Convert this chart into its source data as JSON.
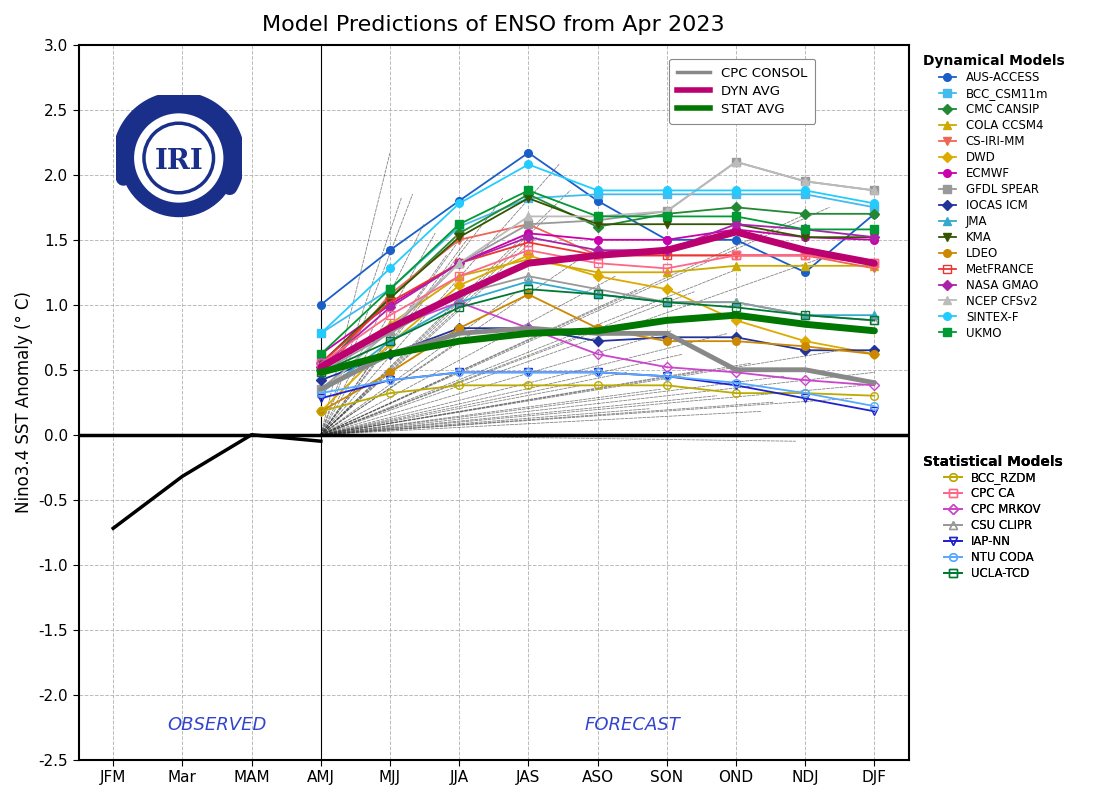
{
  "title": "Model Predictions of ENSO from Apr 2023",
  "ylabel": "Nino3.4 SST Anomaly (° C)",
  "x_labels": [
    "JFM",
    "Mar",
    "MAM",
    "AMJ",
    "MJJ",
    "JJA",
    "JAS",
    "ASO",
    "SON",
    "OND",
    "NDJ",
    "DJF"
  ],
  "ylim": [
    -2.5,
    3.0
  ],
  "observed_label": "OBSERVED",
  "forecast_label": "FORECAST",
  "background_color": "#ffffff",
  "grid_color": "#aaaaaa",
  "zero_line_color": "#000000",
  "cpc_consol": {
    "label": "CPC CONSOL",
    "color": "#888888",
    "linewidth": 3.5,
    "data": [
      null,
      null,
      null,
      0.35,
      0.62,
      0.78,
      0.82,
      0.78,
      0.78,
      0.5,
      0.5,
      0.4
    ]
  },
  "dyn_avg": {
    "label": "DYN AVG",
    "color": "#bb006f",
    "linewidth": 5,
    "data": [
      null,
      null,
      null,
      0.52,
      0.82,
      1.08,
      1.32,
      1.38,
      1.42,
      1.56,
      1.42,
      1.32
    ]
  },
  "stat_avg": {
    "label": "STAT AVG",
    "color": "#007700",
    "linewidth": 5,
    "data": [
      null,
      null,
      null,
      0.48,
      0.62,
      0.72,
      0.78,
      0.8,
      0.88,
      0.92,
      0.85,
      0.8
    ]
  },
  "dynamical_models": [
    {
      "label": "AUS-ACCESS",
      "color": "#1a5fc8",
      "marker": "o",
      "fillstyle": "full",
      "data": [
        null,
        null,
        null,
        1.0,
        1.42,
        1.8,
        2.17,
        1.8,
        1.5,
        1.5,
        1.25,
        1.7
      ]
    },
    {
      "label": "BCC_CSM11m",
      "color": "#44bbee",
      "marker": "s",
      "fillstyle": "full",
      "data": [
        null,
        null,
        null,
        0.78,
        1.12,
        1.6,
        1.82,
        1.85,
        1.85,
        1.85,
        1.85,
        1.75
      ]
    },
    {
      "label": "CMC CANSIP",
      "color": "#228833",
      "marker": "D",
      "fillstyle": "full",
      "data": [
        null,
        null,
        null,
        0.5,
        1.05,
        1.55,
        1.85,
        1.6,
        1.7,
        1.75,
        1.7,
        1.7
      ]
    },
    {
      "label": "COLA CCSM4",
      "color": "#ccaa00",
      "marker": "^",
      "fillstyle": "full",
      "data": [
        null,
        null,
        null,
        0.5,
        0.85,
        1.22,
        1.35,
        1.25,
        1.25,
        1.3,
        1.3,
        1.3
      ]
    },
    {
      "label": "CS-IRI-MM",
      "color": "#ee6655",
      "marker": "v",
      "fillstyle": "full",
      "data": [
        null,
        null,
        null,
        0.45,
        1.08,
        1.5,
        1.62,
        1.38,
        1.38,
        1.38,
        1.38,
        1.28
      ]
    },
    {
      "label": "DWD",
      "color": "#ddaa00",
      "marker": "D",
      "fillstyle": "full",
      "data": [
        null,
        null,
        null,
        0.18,
        0.7,
        1.15,
        1.38,
        1.22,
        1.12,
        0.88,
        0.72,
        0.62
      ]
    },
    {
      "label": "ECMWF",
      "color": "#cc00aa",
      "marker": "o",
      "fillstyle": "full",
      "data": [
        null,
        null,
        null,
        0.62,
        1.0,
        1.32,
        1.55,
        1.5,
        1.5,
        1.58,
        1.52,
        1.5
      ]
    },
    {
      "label": "GFDL SPEAR",
      "color": "#999999",
      "marker": "s",
      "fillstyle": "full",
      "data": [
        null,
        null,
        null,
        0.35,
        0.8,
        1.32,
        1.62,
        1.65,
        1.72,
        2.1,
        1.95,
        1.88
      ]
    },
    {
      "label": "IOCAS ICM",
      "color": "#223399",
      "marker": "D",
      "fillstyle": "full",
      "data": [
        null,
        null,
        null,
        0.42,
        0.62,
        0.82,
        0.82,
        0.72,
        0.75,
        0.75,
        0.65,
        0.65
      ]
    },
    {
      "label": "JMA",
      "color": "#33aacc",
      "marker": "^",
      "fillstyle": "full",
      "data": [
        null,
        null,
        null,
        0.32,
        0.72,
        1.02,
        1.18,
        1.08,
        1.02,
        1.02,
        0.92,
        0.92
      ]
    },
    {
      "label": "KMA",
      "color": "#335500",
      "marker": "v",
      "fillstyle": "full",
      "data": [
        null,
        null,
        null,
        0.55,
        1.05,
        1.52,
        1.82,
        1.62,
        1.62,
        1.62,
        1.52,
        1.52
      ]
    },
    {
      "label": "LDEO",
      "color": "#cc8800",
      "marker": "o",
      "fillstyle": "full",
      "data": [
        null,
        null,
        null,
        0.18,
        0.48,
        0.82,
        1.08,
        0.82,
        0.72,
        0.72,
        0.68,
        0.62
      ]
    },
    {
      "label": "MetFRANCE",
      "color": "#ee3333",
      "marker": "s",
      "fillstyle": "none",
      "data": [
        null,
        null,
        null,
        0.55,
        1.02,
        1.32,
        1.48,
        1.38,
        1.38,
        1.38,
        1.38,
        1.32
      ]
    },
    {
      "label": "NASA GMAO",
      "color": "#aa22aa",
      "marker": "D",
      "fillstyle": "full",
      "data": [
        null,
        null,
        null,
        0.52,
        0.98,
        1.32,
        1.52,
        1.42,
        1.42,
        1.62,
        1.58,
        1.52
      ]
    },
    {
      "label": "NCEP CFSv2",
      "color": "#bbbbbb",
      "marker": "^",
      "fillstyle": "full",
      "data": [
        null,
        null,
        null,
        0.32,
        0.82,
        1.32,
        1.68,
        1.68,
        1.72,
        2.1,
        1.95,
        1.88
      ]
    },
    {
      "label": "SINTEX-F",
      "color": "#22ccff",
      "marker": "o",
      "fillstyle": "full",
      "data": [
        null,
        null,
        null,
        0.78,
        1.28,
        1.78,
        2.08,
        1.88,
        1.88,
        1.88,
        1.88,
        1.78
      ]
    },
    {
      "label": "UKMO",
      "color": "#009933",
      "marker": "s",
      "fillstyle": "full",
      "data": [
        null,
        null,
        null,
        0.62,
        1.12,
        1.62,
        1.88,
        1.68,
        1.68,
        1.68,
        1.58,
        1.58
      ]
    }
  ],
  "statistical_models": [
    {
      "label": "BCC_RZDM",
      "color": "#bbaa00",
      "marker": "o",
      "fillstyle": "none",
      "data": [
        null,
        null,
        null,
        0.18,
        0.32,
        0.38,
        0.38,
        0.38,
        0.38,
        0.32,
        0.32,
        0.3
      ]
    },
    {
      "label": "CPC CA",
      "color": "#ff6688",
      "marker": "s",
      "fillstyle": "none",
      "data": [
        null,
        null,
        null,
        0.55,
        0.92,
        1.22,
        1.42,
        1.32,
        1.28,
        1.38,
        1.38,
        1.32
      ]
    },
    {
      "label": "CPC MRKOV",
      "color": "#cc44cc",
      "marker": "D",
      "fillstyle": "none",
      "data": [
        null,
        null,
        null,
        0.55,
        0.82,
        1.02,
        0.82,
        0.62,
        0.52,
        0.48,
        0.42,
        0.38
      ]
    },
    {
      "label": "CSU CLIPR",
      "color": "#999999",
      "marker": "^",
      "fillstyle": "none",
      "data": [
        null,
        null,
        null,
        0.48,
        0.78,
        1.08,
        1.22,
        1.12,
        1.02,
        1.02,
        0.92,
        0.88
      ]
    },
    {
      "label": "IAP-NN",
      "color": "#2222cc",
      "marker": "v",
      "fillstyle": "none",
      "data": [
        null,
        null,
        null,
        0.28,
        0.42,
        0.48,
        0.48,
        0.48,
        0.45,
        0.38,
        0.28,
        0.18
      ]
    },
    {
      "label": "NTU CODA",
      "color": "#55aaff",
      "marker": "o",
      "fillstyle": "none",
      "data": [
        null,
        null,
        null,
        0.32,
        0.42,
        0.48,
        0.48,
        0.48,
        0.45,
        0.4,
        0.32,
        0.22
      ]
    },
    {
      "label": "UCLA-TCD",
      "color": "#007733",
      "marker": "s",
      "fillstyle": "none",
      "data": [
        null,
        null,
        null,
        0.48,
        0.72,
        0.98,
        1.12,
        1.08,
        1.02,
        0.98,
        0.92,
        0.88
      ]
    }
  ],
  "observed_data": {
    "x": [
      0,
      1,
      2,
      3
    ],
    "y": [
      -0.72,
      -0.32,
      0.0,
      -0.05
    ]
  },
  "plume_endpoints": [
    2.17,
    1.82,
    1.85,
    1.62,
    1.55,
    1.38,
    1.48,
    1.52,
    0.82,
    1.18,
    1.82,
    1.08,
    1.48,
    1.52,
    1.68,
    2.08,
    1.88,
    0.38,
    1.42,
    0.82,
    1.22,
    0.48,
    1.12,
    0.2,
    0.35,
    0.8,
    0.62,
    1.1,
    0.5,
    0.3,
    0.78,
    1.28,
    0.55,
    0.18,
    0.25,
    0.45,
    -0.05,
    1.7,
    1.35,
    1.75,
    0.65,
    0.28,
    0.38,
    0.48
  ],
  "plume_color": "#333333"
}
